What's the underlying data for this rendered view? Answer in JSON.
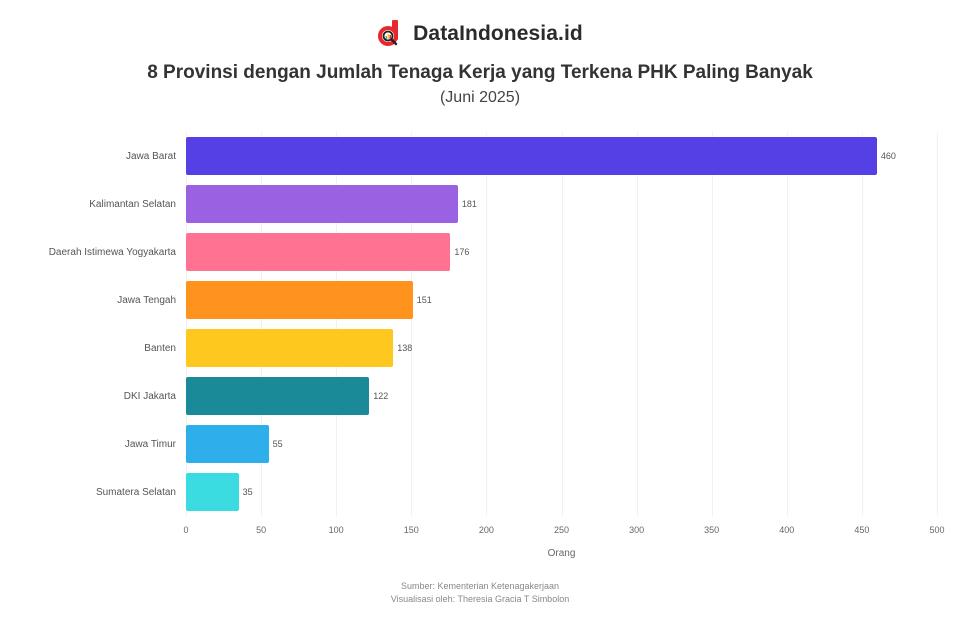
{
  "brand": {
    "name": "DataIndonesia.id",
    "logo_icon": "d-magnifier-logo",
    "logo_color": "#E8262E"
  },
  "header": {
    "title": "8 Provinsi dengan Jumlah Tenaga Kerja yang Terkena PHK Paling Banyak",
    "subtitle": "(Juni 2025)"
  },
  "footer": {
    "source": "Sumber: Kementerian Ketenagakerjaan",
    "credit": "Visualisasi oleh: Theresia Gracia T Simbolon"
  },
  "chart_data": {
    "type": "bar",
    "orientation": "horizontal",
    "title": "8 Provinsi dengan Jumlah Tenaga Kerja yang Terkena PHK Paling Banyak",
    "subtitle": "(Juni 2025)",
    "xlabel": "Orang",
    "ylabel": "",
    "xlim": [
      0,
      500
    ],
    "x_ticks": [
      "0",
      "50",
      "100",
      "150",
      "200",
      "250",
      "300",
      "350",
      "400",
      "450",
      "500"
    ],
    "grid": "vertical",
    "legend": "none",
    "categories": [
      "Jawa Barat",
      "Kalimantan Selatan",
      "Daerah Istimewa Yogyakarta",
      "Jawa Tengah",
      "Banten",
      "DKI Jakarta",
      "Jawa Timur",
      "Sumatera Selatan"
    ],
    "values": [
      460,
      181,
      176,
      151,
      138,
      122,
      55,
      35
    ],
    "value_labels": [
      "460",
      "181",
      "176",
      "151",
      "138",
      "122",
      "55",
      "35"
    ],
    "colors": [
      "#5540E6",
      "#9A62E2",
      "#FF7292",
      "#FF931E",
      "#FFC81E",
      "#1A8A98",
      "#2EAEEA",
      "#3ADCE2"
    ]
  }
}
